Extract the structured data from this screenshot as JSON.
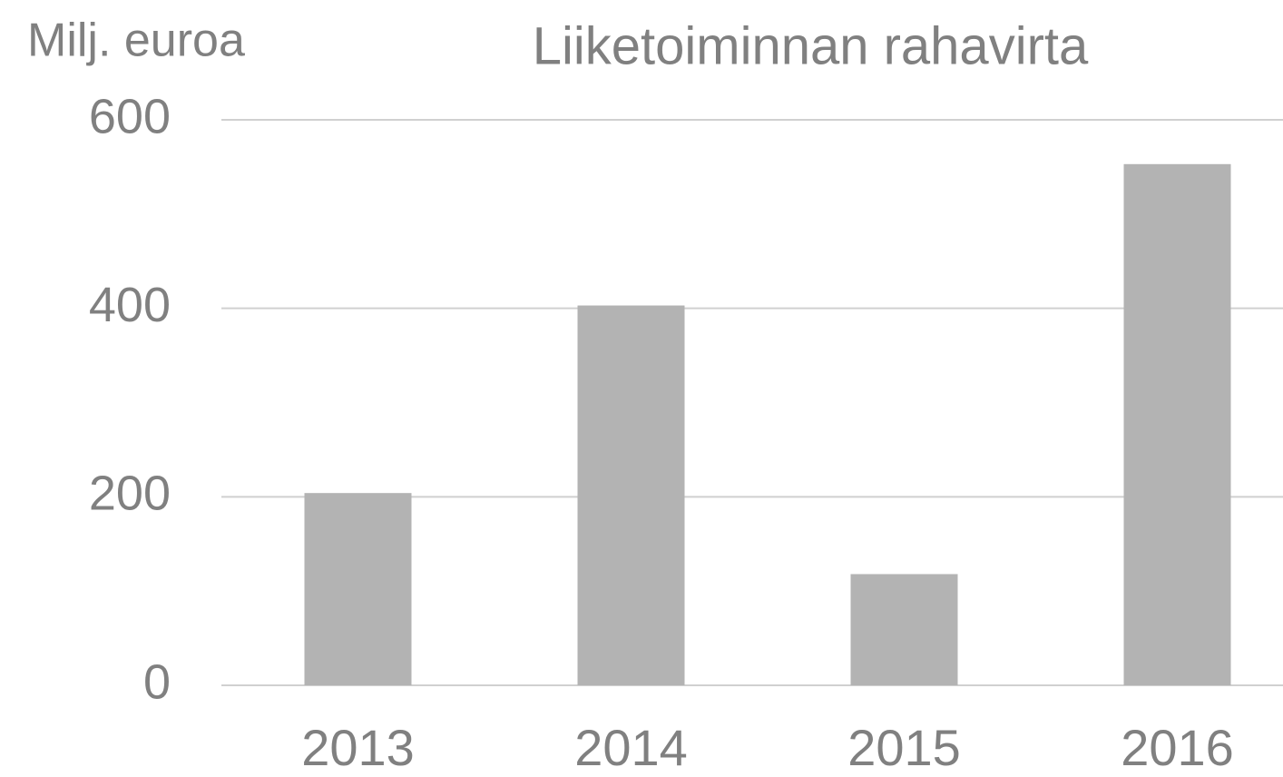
{
  "chart_data": {
    "type": "bar",
    "title": "Liiketoiminnan rahavirta",
    "y_label": "Milj. euroa",
    "categories": [
      "2013",
      "2014",
      "2015",
      "2016"
    ],
    "values": [
      204,
      403,
      118,
      553
    ],
    "color": "#b3b3b3",
    "ylim": [
      0,
      600
    ],
    "yticks": [
      0,
      200,
      400,
      600
    ],
    "grid": true
  }
}
